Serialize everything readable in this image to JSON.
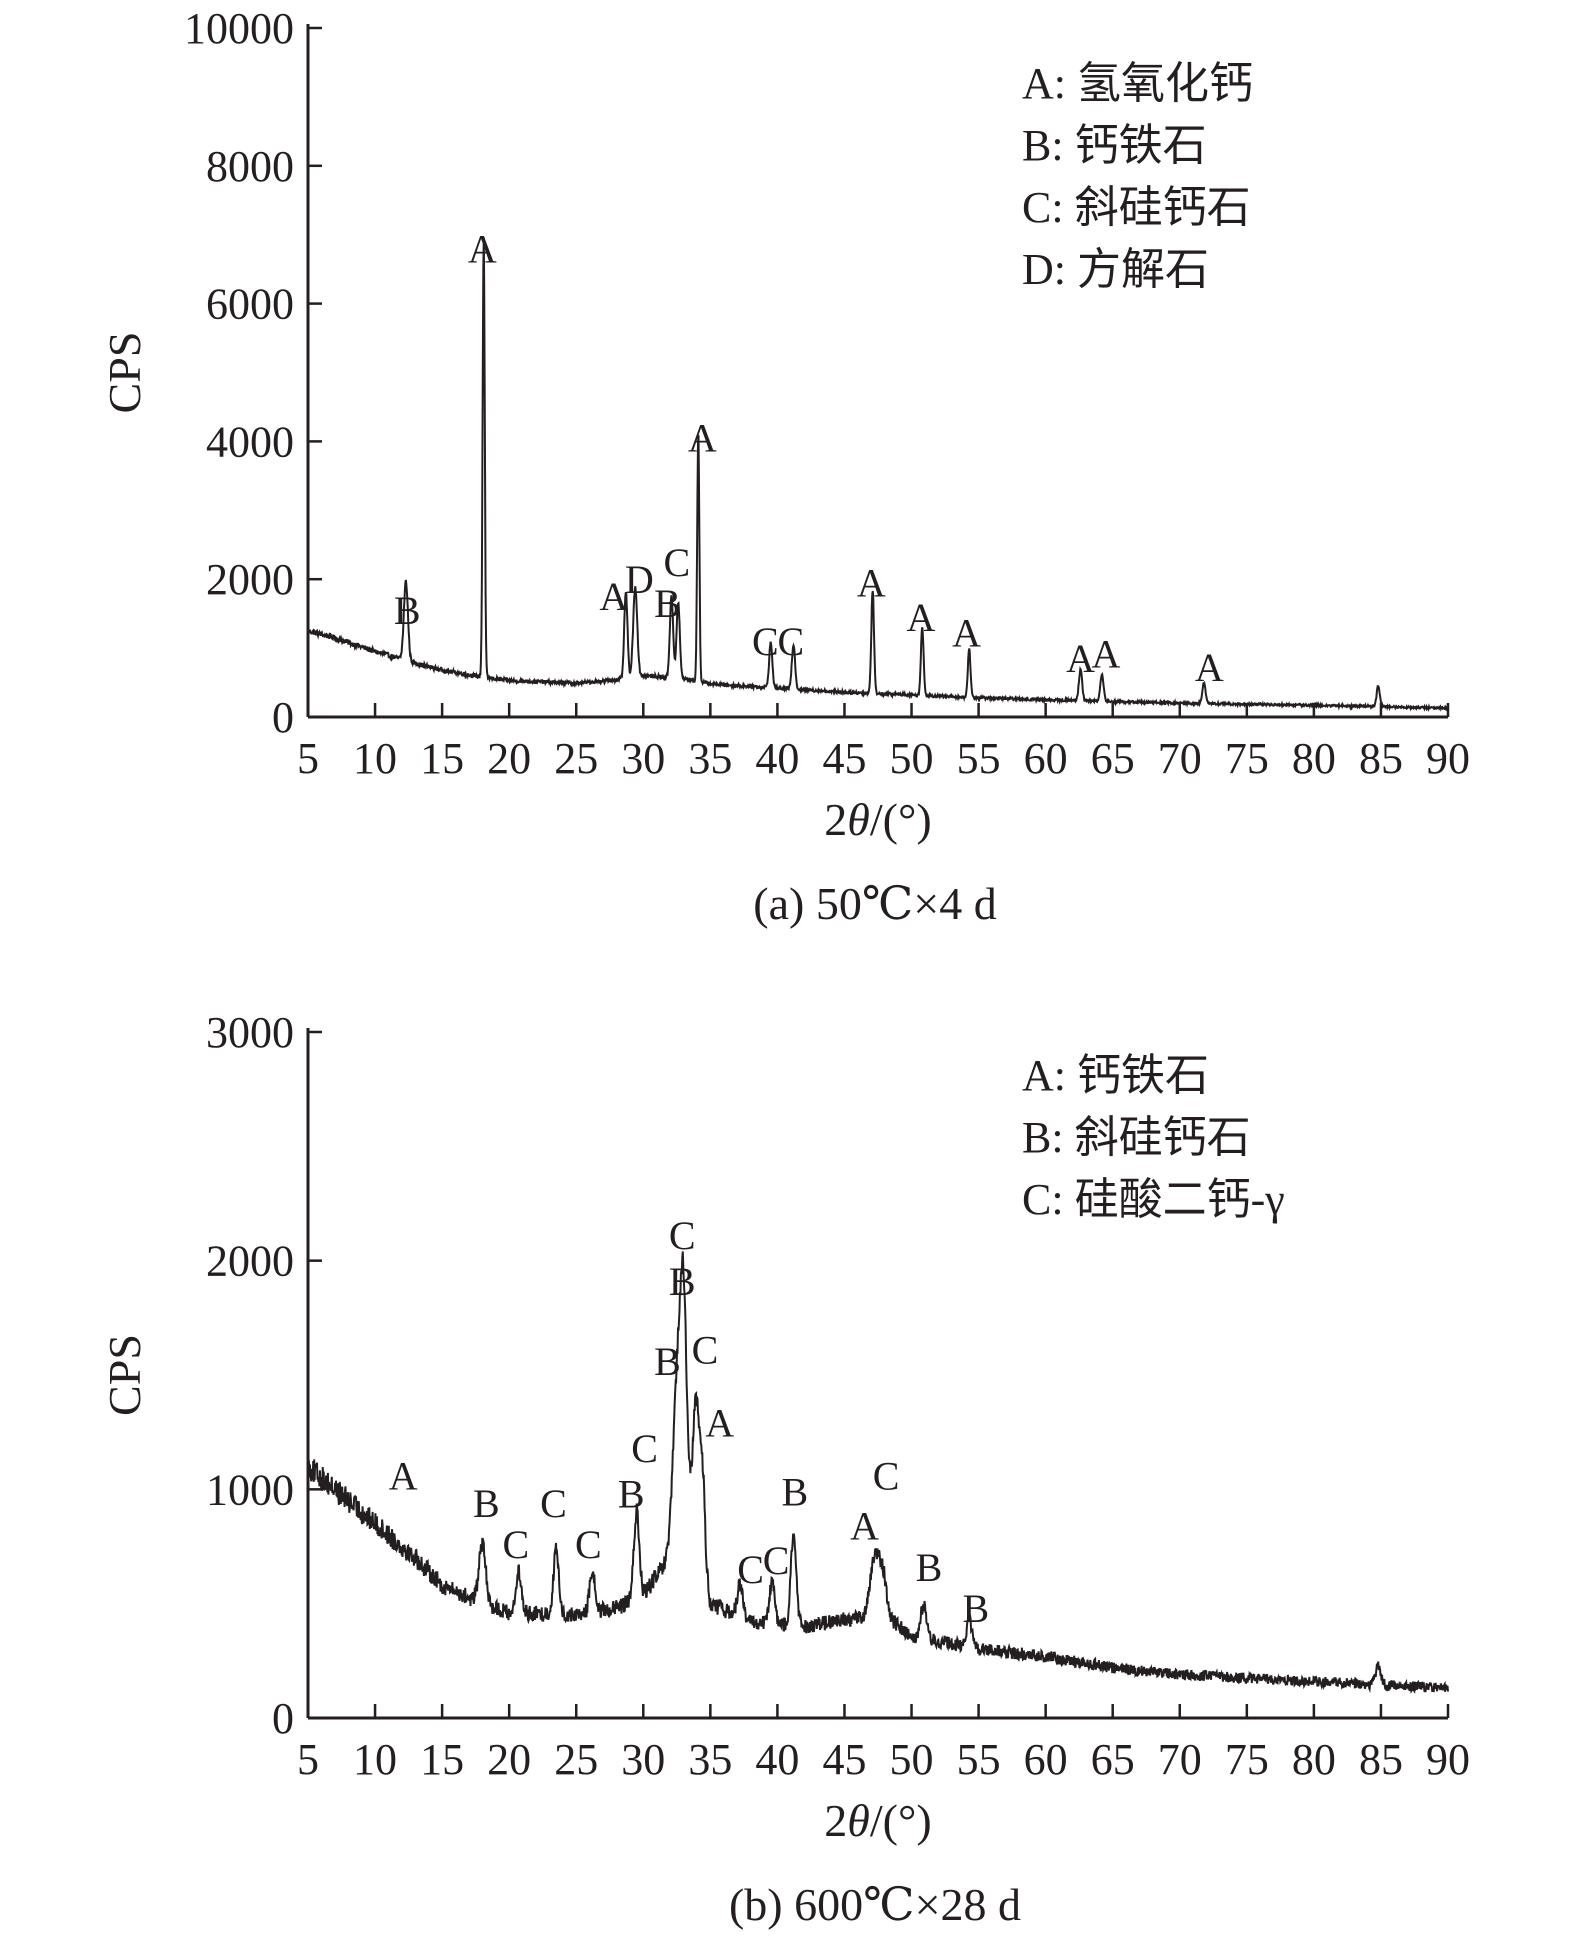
{
  "chart_data": [
    {
      "type": "line",
      "caption": "(a) 50℃×4 d",
      "xlabel": "2θ/(°)",
      "ylabel": "CPS",
      "xlim": [
        5,
        90
      ],
      "ylim": [
        0,
        10000
      ],
      "xticks": [
        5,
        10,
        15,
        20,
        25,
        30,
        35,
        40,
        45,
        50,
        55,
        60,
        65,
        70,
        75,
        80,
        85,
        90
      ],
      "yticks": [
        0,
        2000,
        4000,
        6000,
        8000,
        10000
      ],
      "legend": [
        "A: 氢氧化钙",
        "B: 钙铁石",
        "C: 斜硅钙石",
        "D: 方解石"
      ],
      "legend_position": "top-right",
      "grid": false,
      "line_color": "#231f20",
      "baseline": [
        [
          5,
          1250
        ],
        [
          7,
          1150
        ],
        [
          10,
          950
        ],
        [
          13,
          780
        ],
        [
          15,
          680
        ],
        [
          18,
          580
        ],
        [
          20,
          530
        ],
        [
          25,
          490
        ],
        [
          28,
          540
        ],
        [
          30,
          600
        ],
        [
          33,
          560
        ],
        [
          35,
          480
        ],
        [
          40,
          420
        ],
        [
          45,
          360
        ],
        [
          50,
          320
        ],
        [
          55,
          280
        ],
        [
          60,
          250
        ],
        [
          70,
          200
        ],
        [
          80,
          170
        ],
        [
          90,
          130
        ]
      ],
      "peaks": [
        {
          "x": 12.3,
          "y": 1150,
          "w": 0.15
        },
        {
          "x": 18.1,
          "y": 6400,
          "w": 0.08
        },
        {
          "x": 28.7,
          "y": 1250,
          "w": 0.12
        },
        {
          "x": 29.4,
          "y": 1300,
          "w": 0.15
        },
        {
          "x": 32.1,
          "y": 1200,
          "w": 0.12
        },
        {
          "x": 32.6,
          "y": 1100,
          "w": 0.12
        },
        {
          "x": 34.1,
          "y": 3600,
          "w": 0.08
        },
        {
          "x": 39.5,
          "y": 650,
          "w": 0.12
        },
        {
          "x": 41.2,
          "y": 650,
          "w": 0.12
        },
        {
          "x": 47.1,
          "y": 1500,
          "w": 0.1
        },
        {
          "x": 50.8,
          "y": 1000,
          "w": 0.1
        },
        {
          "x": 54.3,
          "y": 700,
          "w": 0.1
        },
        {
          "x": 62.6,
          "y": 450,
          "w": 0.12
        },
        {
          "x": 64.2,
          "y": 400,
          "w": 0.12
        },
        {
          "x": 71.8,
          "y": 300,
          "w": 0.12
        },
        {
          "x": 84.8,
          "y": 300,
          "w": 0.12
        }
      ],
      "noise": 40,
      "peak_labels": [
        {
          "label": "B",
          "x": 12.4,
          "y": 1350
        },
        {
          "label": "A",
          "x": 18.0,
          "y": 6600
        },
        {
          "label": "A",
          "x": 27.8,
          "y": 1550
        },
        {
          "label": "D",
          "x": 29.7,
          "y": 1800
        },
        {
          "label": "B",
          "x": 31.8,
          "y": 1450
        },
        {
          "label": "C",
          "x": 32.5,
          "y": 2050
        },
        {
          "label": "A",
          "x": 34.4,
          "y": 3850
        },
        {
          "label": "C",
          "x": 39.1,
          "y": 900
        },
        {
          "label": "C",
          "x": 41.0,
          "y": 900
        },
        {
          "label": "A",
          "x": 47.0,
          "y": 1750
        },
        {
          "label": "A",
          "x": 50.7,
          "y": 1250
        },
        {
          "label": "A",
          "x": 54.1,
          "y": 1020
        },
        {
          "label": "A",
          "x": 62.6,
          "y": 650
        },
        {
          "label": "A",
          "x": 64.5,
          "y": 720
        },
        {
          "label": "A",
          "x": 72.2,
          "y": 520
        }
      ]
    },
    {
      "type": "line",
      "caption": "(b) 600℃×28 d",
      "xlabel": "2θ/(°)",
      "ylabel": "CPS",
      "xlim": [
        5,
        90
      ],
      "ylim": [
        0,
        3000
      ],
      "xticks": [
        5,
        10,
        15,
        20,
        25,
        30,
        35,
        40,
        45,
        50,
        55,
        60,
        65,
        70,
        75,
        80,
        85,
        90
      ],
      "yticks": [
        0,
        1000,
        2000,
        3000
      ],
      "legend": [
        "A: 钙铁石",
        "B: 斜硅钙石",
        "C: 硅酸二钙-γ"
      ],
      "legend_position": "top-right",
      "grid": false,
      "line_color": "#231f20",
      "baseline": [
        [
          5,
          1100
        ],
        [
          7,
          1000
        ],
        [
          10,
          850
        ],
        [
          13,
          700
        ],
        [
          15,
          580
        ],
        [
          18,
          500
        ],
        [
          20,
          460
        ],
        [
          25,
          450
        ],
        [
          28,
          480
        ],
        [
          30,
          540
        ],
        [
          32,
          700
        ],
        [
          34,
          780
        ],
        [
          35,
          500
        ],
        [
          38,
          420
        ],
        [
          42,
          400
        ],
        [
          46,
          440
        ],
        [
          48,
          450
        ],
        [
          50,
          360
        ],
        [
          55,
          300
        ],
        [
          60,
          270
        ],
        [
          65,
          220
        ],
        [
          70,
          190
        ],
        [
          80,
          160
        ],
        [
          90,
          130
        ]
      ],
      "peaks": [
        {
          "x": 18.0,
          "y": 260,
          "w": 0.25
        },
        {
          "x": 20.7,
          "y": 180,
          "w": 0.2
        },
        {
          "x": 23.5,
          "y": 280,
          "w": 0.2
        },
        {
          "x": 26.2,
          "y": 180,
          "w": 0.2
        },
        {
          "x": 29.5,
          "y": 380,
          "w": 0.2
        },
        {
          "x": 32.5,
          "y": 700,
          "w": 0.3
        },
        {
          "x": 33.0,
          "y": 1050,
          "w": 0.25
        },
        {
          "x": 33.9,
          "y": 600,
          "w": 0.25
        },
        {
          "x": 34.4,
          "y": 400,
          "w": 0.2
        },
        {
          "x": 37.2,
          "y": 150,
          "w": 0.2
        },
        {
          "x": 39.6,
          "y": 180,
          "w": 0.2
        },
        {
          "x": 41.2,
          "y": 400,
          "w": 0.2
        },
        {
          "x": 47.2,
          "y": 230,
          "w": 0.3
        },
        {
          "x": 47.8,
          "y": 200,
          "w": 0.3
        },
        {
          "x": 50.9,
          "y": 150,
          "w": 0.2
        },
        {
          "x": 54.3,
          "y": 130,
          "w": 0.2
        },
        {
          "x": 84.8,
          "y": 80,
          "w": 0.2
        }
      ],
      "noise": 55,
      "peak_labels": [
        {
          "label": "A",
          "x": 12.1,
          "y": 1000
        },
        {
          "label": "B",
          "x": 18.3,
          "y": 880
        },
        {
          "label": "C",
          "x": 20.5,
          "y": 700
        },
        {
          "label": "C",
          "x": 23.3,
          "y": 880
        },
        {
          "label": "C",
          "x": 25.9,
          "y": 700
        },
        {
          "label": "B",
          "x": 29.1,
          "y": 920
        },
        {
          "label": "C",
          "x": 30.1,
          "y": 1120
        },
        {
          "label": "B",
          "x": 31.8,
          "y": 1500
        },
        {
          "label": "C",
          "x": 32.9,
          "y": 2050
        },
        {
          "label": "B",
          "x": 32.9,
          "y": 1850
        },
        {
          "label": "C",
          "x": 34.6,
          "y": 1550
        },
        {
          "label": "A",
          "x": 35.7,
          "y": 1230
        },
        {
          "label": "C",
          "x": 38.0,
          "y": 590
        },
        {
          "label": "C",
          "x": 39.9,
          "y": 630
        },
        {
          "label": "B",
          "x": 41.3,
          "y": 930
        },
        {
          "label": "A",
          "x": 46.5,
          "y": 780
        },
        {
          "label": "C",
          "x": 48.1,
          "y": 1000
        },
        {
          "label": "B",
          "x": 51.3,
          "y": 600
        },
        {
          "label": "B",
          "x": 54.8,
          "y": 420
        }
      ]
    }
  ]
}
